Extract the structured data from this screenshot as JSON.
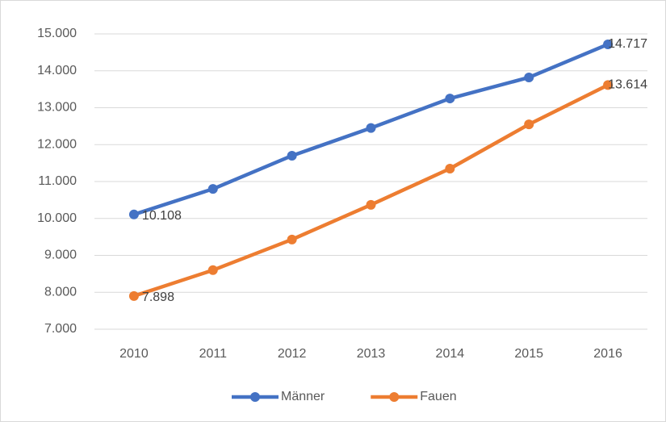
{
  "chart_data": {
    "type": "line",
    "categories": [
      "2010",
      "2011",
      "2012",
      "2013",
      "2014",
      "2015",
      "2016"
    ],
    "series": [
      {
        "name": "Männer",
        "color": "#4472c4",
        "values": [
          10108,
          10800,
          11700,
          12450,
          13250,
          13820,
          14717
        ],
        "value_labels": [
          "10.108",
          null,
          null,
          null,
          null,
          null,
          "14.717"
        ]
      },
      {
        "name": "Fauen",
        "color": "#ed7d31",
        "values": [
          7898,
          8600,
          9430,
          10370,
          11350,
          12550,
          13614
        ],
        "value_labels": [
          "7.898",
          null,
          null,
          null,
          null,
          null,
          "13.614"
        ]
      }
    ],
    "ylim": [
      7000,
      15000
    ],
    "yticks": [
      {
        "value": 7000,
        "label": "7.000"
      },
      {
        "value": 8000,
        "label": "8.000"
      },
      {
        "value": 9000,
        "label": "9.000"
      },
      {
        "value": 10000,
        "label": "10.000"
      },
      {
        "value": 11000,
        "label": "11.000"
      },
      {
        "value": 12000,
        "label": "12.000"
      },
      {
        "value": 13000,
        "label": "13.000"
      },
      {
        "value": 14000,
        "label": "14.000"
      },
      {
        "value": 15000,
        "label": "15.000"
      }
    ],
    "grid": true,
    "legend": "bottom"
  }
}
